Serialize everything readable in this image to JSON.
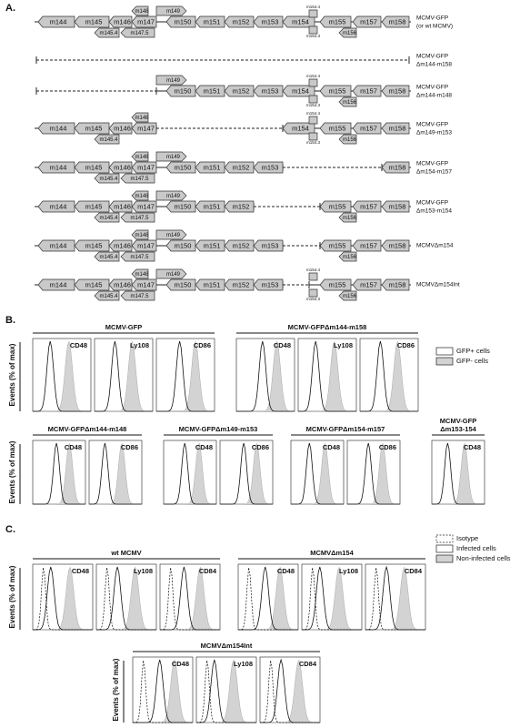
{
  "panel_a": {
    "label": "A.",
    "rows": [
      {
        "label": [
          "MCMV-GFP",
          "(or wt MCMV)"
        ],
        "genes": [
          "m144",
          "m145",
          "m146",
          "m147",
          "m148",
          "m149",
          "m150",
          "m151",
          "m152",
          "m153",
          "m154",
          "m155",
          "m156",
          "m157",
          "m158",
          "m145.4",
          "m147.5",
          "m154.4",
          "m154.3"
        ]
      },
      {
        "label": [
          "MCMV-GFP",
          "Δm144-m158"
        ],
        "genes": []
      },
      {
        "label": [
          "MCMV-GFP",
          "Δm144-m148"
        ],
        "genes": [
          "m149",
          "m150",
          "m151",
          "m152",
          "m153",
          "m154",
          "m155",
          "m156",
          "m157",
          "m158",
          "m154.4",
          "m154.3"
        ]
      },
      {
        "label": [
          "MCMV-GFP",
          "Δm149-m153"
        ],
        "genes": [
          "m144",
          "m145",
          "m146",
          "m147",
          "m148",
          "m145.4",
          "m154",
          "m155",
          "m156",
          "m157",
          "m158",
          "m154.4",
          "m154.3"
        ]
      },
      {
        "label": [
          "MCMV-GFP",
          "Δm154-m157"
        ],
        "genes": [
          "m144",
          "m145",
          "m146",
          "m147",
          "m148",
          "m149",
          "m150",
          "m151",
          "m152",
          "m153",
          "m158",
          "m145.4",
          "m147.5"
        ]
      },
      {
        "label": [
          "MCMV-GFP",
          "Δm153-m154"
        ],
        "genes": [
          "m144",
          "m145",
          "m146",
          "m147",
          "m148",
          "m149",
          "m150",
          "m151",
          "m152",
          "m155",
          "m156",
          "m157",
          "m158",
          "m145.4",
          "m147.5"
        ]
      },
      {
        "label": [
          "MCMVΔm154"
        ],
        "genes": [
          "m144",
          "m145",
          "m146",
          "m147",
          "m148",
          "m149",
          "m150",
          "m151",
          "m152",
          "m153",
          "m155",
          "m156",
          "m157",
          "m158",
          "m145.4",
          "m147.5"
        ]
      },
      {
        "label": [
          "MCMVΔm154Int"
        ],
        "genes": [
          "m144",
          "m145",
          "m146",
          "m147",
          "m148",
          "m149",
          "m150",
          "m151",
          "m152",
          "m153",
          "m155",
          "m156",
          "m157",
          "m158",
          "m145.4",
          "m147.5",
          "m154.4",
          "m154.3"
        ]
      }
    ]
  },
  "panel_b": {
    "label": "B.",
    "y_label": "Events (% of max)",
    "legend": [
      "GFP+ cells",
      "GFP- cells"
    ],
    "rows": [
      [
        {
          "title": [
            "MCMV-GFP"
          ],
          "plots": [
            "CD48",
            "Ly108",
            "CD86"
          ]
        },
        {
          "title": [
            "MCMV-GFPΔm144-m158"
          ],
          "plots": [
            "CD48",
            "Ly108",
            "CD86"
          ]
        }
      ],
      [
        {
          "title": [
            "MCMV-GFPΔm144-m148"
          ],
          "plots": [
            "CD48",
            "CD86"
          ]
        },
        {
          "title": [
            "MCMV-GFPΔm149-m153"
          ],
          "plots": [
            "CD48",
            "CD86"
          ]
        },
        {
          "title": [
            "MCMV-GFPΔm154-m157"
          ],
          "plots": [
            "CD48",
            "CD86"
          ]
        },
        {
          "title": [
            "MCMV-GFP",
            "Δm153-154"
          ],
          "plots": [
            "CD48"
          ]
        }
      ]
    ]
  },
  "panel_c": {
    "label": "C.",
    "y_label": "Events (% of max)",
    "legend": [
      "Isotype",
      "Infected cells",
      "Non-infected cells"
    ],
    "rows": [
      [
        {
          "title": [
            "wt MCMV"
          ],
          "plots": [
            "CD48",
            "Ly108",
            "CD84"
          ]
        },
        {
          "title": [
            "MCMVΔm154"
          ],
          "plots": [
            "CD48",
            "Ly108",
            "CD84"
          ]
        }
      ],
      [
        {
          "title": [
            "MCMVΔm154Int"
          ],
          "plots": [
            "CD48",
            "Ly108",
            "CD84"
          ]
        }
      ]
    ]
  }
}
